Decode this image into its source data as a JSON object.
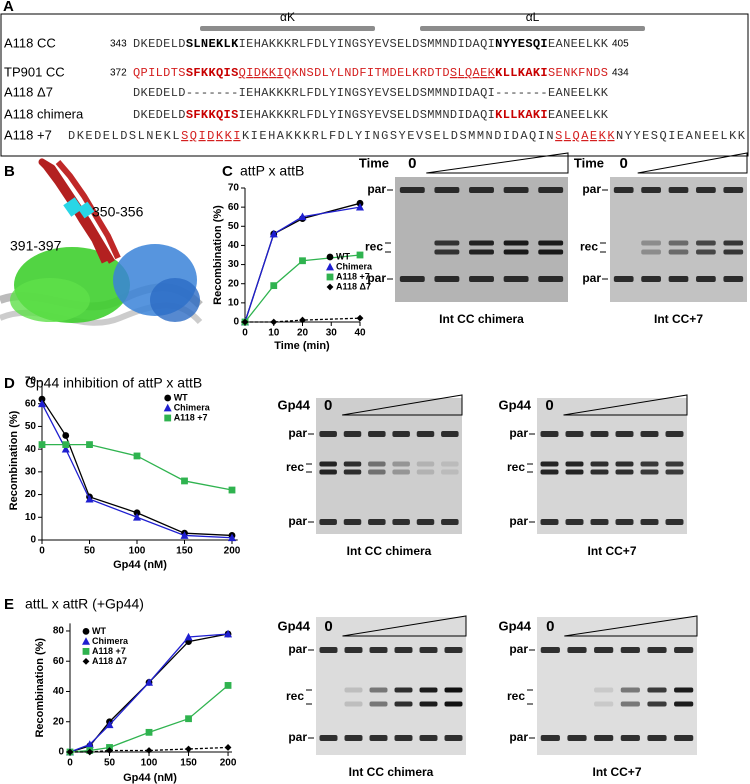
{
  "panel_labels": [
    "A",
    "B",
    "C",
    "D",
    "E"
  ],
  "alignment": {
    "helices": [
      {
        "label": "αK"
      },
      {
        "label": "αL"
      }
    ],
    "rows": [
      {
        "label": "A118 CC",
        "start": 343,
        "end": 405,
        "segments": [
          {
            "text": "DKEDELD",
            "style": "plain"
          },
          {
            "text": "SLNEKLK",
            "style": "bold"
          },
          {
            "text": "IEHAKKKRLFDLYINGSYEVSELDSMMNDIDAQI",
            "style": "plain"
          },
          {
            "text": "NYYESQI",
            "style": "bold"
          },
          {
            "text": "EANEELKK",
            "style": "plain"
          }
        ]
      },
      {
        "label": "TP901 CC",
        "start": 372,
        "end": 434,
        "segments": [
          {
            "text": "QPILDTS",
            "style": "red"
          },
          {
            "text": "SFKKQIS",
            "style": "red-bold"
          },
          {
            "text": "QIDKKI",
            "style": "red-underline"
          },
          {
            "text": "QKNSDLYLNDFITMDELKRDTD",
            "style": "red"
          },
          {
            "text": "SLQAEK",
            "style": "red-underline"
          },
          {
            "text": "KLLKAKI",
            "style": "red-bold"
          },
          {
            "text": "SENKFNDS",
            "style": "red"
          }
        ]
      },
      {
        "label": "A118 Δ7",
        "segments": [
          {
            "text": "DKEDELD-------IEHAKKKRLFDLYINGSYEVSELDSMMNDIDAQI-------EANEELKK",
            "style": "plain"
          }
        ]
      },
      {
        "label": "A118 chimera",
        "segments": [
          {
            "text": "DKEDELD",
            "style": "plain"
          },
          {
            "text": "SFKKQIS",
            "style": "red-bold"
          },
          {
            "text": "IEHAKKKRLFDLYINGSYEVSELDSMMNDIDAQI",
            "style": "plain"
          },
          {
            "text": "KLLKAKI",
            "style": "red-bold"
          },
          {
            "text": "EANEELKK",
            "style": "plain"
          }
        ]
      },
      {
        "label": "A118 +7",
        "segments": [
          {
            "text": "DKEDELDSLNEKL",
            "style": "plain"
          },
          {
            "text": "SQIDKKI",
            "style": "red-underline"
          },
          {
            "text": "KIEHAKKKRLFDLYINGSYEVSELDSMMNDIDAQIN",
            "style": "plain"
          },
          {
            "text": "SLQAEKK",
            "style": "red-underline"
          },
          {
            "text": "NYYESQIEANEELKK",
            "style": "plain"
          }
        ]
      }
    ]
  },
  "structure": {
    "labels": [
      "391-397",
      "350-356"
    ]
  },
  "chart_data": [
    {
      "type": "line",
      "title": "attP x attB",
      "xlabel": "Time (min)",
      "ylabel": "Recombination (%)",
      "x": [
        0,
        10,
        20,
        40
      ],
      "xlim": [
        0,
        40
      ],
      "xticks": [
        0,
        10,
        20,
        30,
        40
      ],
      "ylim": [
        0,
        70
      ],
      "yticks": [
        0,
        10,
        20,
        30,
        40,
        50,
        60,
        70
      ],
      "legend": "center right",
      "series": [
        {
          "name": "WT",
          "color": "#000000",
          "marker": "circle",
          "linestyle": "solid",
          "values": [
            0,
            46,
            54,
            62
          ]
        },
        {
          "name": "Chimera",
          "color": "#1f1fd0",
          "marker": "triangle",
          "linestyle": "solid",
          "values": [
            0,
            46,
            55,
            60
          ]
        },
        {
          "name": "A118 +7",
          "color": "#2fb34f",
          "marker": "square",
          "linestyle": "solid",
          "values": [
            0,
            19,
            32,
            35
          ]
        },
        {
          "name": "A118 Δ7",
          "color": "#000000",
          "marker": "diamond",
          "linestyle": "dashed",
          "values": [
            0,
            0,
            1,
            2
          ]
        }
      ]
    },
    {
      "type": "line",
      "title": "Gp44 inhibition of attP x attB",
      "xlabel": "Gp44 (nM)",
      "ylabel": "Recombination (%)",
      "x": [
        0,
        25,
        50,
        100,
        150,
        200
      ],
      "xlim": [
        0,
        206
      ],
      "xticks": [
        0,
        50,
        100,
        150,
        200
      ],
      "ylim": [
        0,
        70
      ],
      "yticks": [
        0,
        10,
        20,
        30,
        40,
        50,
        60,
        70
      ],
      "legend": "upper right",
      "series": [
        {
          "name": "WT",
          "color": "#000000",
          "marker": "circle",
          "linestyle": "solid",
          "values": [
            62,
            46,
            19,
            12,
            3,
            2
          ]
        },
        {
          "name": "Chimera",
          "color": "#1f1fd0",
          "marker": "triangle",
          "linestyle": "solid",
          "values": [
            60,
            40,
            18,
            10,
            2,
            1
          ]
        },
        {
          "name": "A118 +7",
          "color": "#2fb34f",
          "marker": "square",
          "linestyle": "solid",
          "values": [
            42,
            42,
            42,
            37,
            26,
            22
          ]
        }
      ]
    },
    {
      "type": "line",
      "title": "attL x attR (+Gp44)",
      "xlabel": "Gp44 (nM)",
      "ylabel": "Recombination (%)",
      "x": [
        0,
        25,
        50,
        100,
        150,
        200
      ],
      "xlim": [
        0,
        205
      ],
      "xticks": [
        0,
        50,
        100,
        150,
        200
      ],
      "ylim": [
        0,
        85
      ],
      "yticks": [
        0,
        20,
        40,
        60,
        80
      ],
      "legend": "upper left",
      "series": [
        {
          "name": "WT",
          "color": "#000000",
          "marker": "circle",
          "linestyle": "solid",
          "values": [
            0,
            4,
            20,
            46,
            73,
            78
          ]
        },
        {
          "name": "Chimera",
          "color": "#1f1fd0",
          "marker": "triangle",
          "linestyle": "solid",
          "values": [
            0,
            5,
            18,
            46,
            76,
            78
          ]
        },
        {
          "name": "A118 +7",
          "color": "#2fb34f",
          "marker": "square",
          "linestyle": "solid",
          "values": [
            0,
            1,
            3,
            13,
            22,
            44
          ]
        },
        {
          "name": "A118 Δ7",
          "color": "#000000",
          "marker": "diamond",
          "linestyle": "dashed",
          "values": [
            0,
            0,
            1,
            1,
            2,
            3
          ]
        }
      ]
    }
  ],
  "gels": [
    {
      "axis_label": "Time",
      "zero": "0",
      "bands": [
        "par",
        "rec",
        "par"
      ],
      "caption": "Int CC chimera"
    },
    {
      "axis_label": "Time",
      "zero": "0",
      "bands": [
        "par",
        "rec",
        "par"
      ],
      "caption": "Int CC+7"
    },
    {
      "axis_label": "Gp44",
      "zero": "0",
      "bands": [
        "par",
        "rec",
        "par"
      ],
      "caption": "Int CC chimera"
    },
    {
      "axis_label": "Gp44",
      "zero": "0",
      "bands": [
        "par",
        "rec",
        "par"
      ],
      "caption": "Int CC+7"
    },
    {
      "axis_label": "Gp44",
      "zero": "0",
      "bands": [
        "par",
        "rec",
        "par"
      ],
      "caption": "Int CC chimera"
    },
    {
      "axis_label": "Gp44",
      "zero": "0",
      "bands": [
        "par",
        "rec",
        "par"
      ],
      "caption": "Int CC+7"
    }
  ]
}
